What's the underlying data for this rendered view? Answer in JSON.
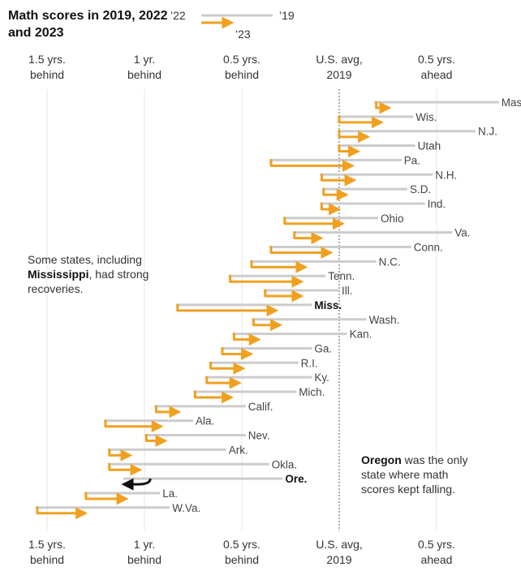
{
  "title": "Math scores in 2019, 2022 and 2023",
  "legend": {
    "y2022": "’22",
    "y2019": "’19",
    "y2023": "’23"
  },
  "colors": {
    "arrow": "#f0a020",
    "line2019": "#cccccc",
    "gridline": "#e6e6e6",
    "avgline": "#777777",
    "oregon_arrow": "#111111"
  },
  "notes": {
    "mississippi": {
      "pre": "Some states, including ",
      "bold": "Mississippi",
      "post": ", had strong recoveries."
    },
    "oregon": {
      "bold": "Oregon",
      "post": " was the only state where math scores kept falling."
    }
  },
  "chart_data": {
    "type": "arrow-dot",
    "x_unit": "years of learning relative to U.S. avg, 2019",
    "xlim": [
      -1.7,
      0.8
    ],
    "ticks": [
      {
        "value": -1.5,
        "line1": "1.5 yrs.",
        "line2": "behind"
      },
      {
        "value": -1.0,
        "line1": "1 yr.",
        "line2": "behind"
      },
      {
        "value": -0.5,
        "line1": "0.5 yrs.",
        "line2": "behind"
      },
      {
        "value": 0.0,
        "line1": "U.S. avg,",
        "line2": "2019"
      },
      {
        "value": 0.5,
        "line1": "0.5 yrs.",
        "line2": "ahead"
      }
    ],
    "states": [
      {
        "name": "Mass.",
        "v2019": 0.82,
        "v2022": 0.19,
        "v2023": 0.25
      },
      {
        "name": "Wis.",
        "v2019": 0.38,
        "v2022": 0.0,
        "v2023": 0.21
      },
      {
        "name": "N.J.",
        "v2019": 0.7,
        "v2022": 0.0,
        "v2023": 0.14
      },
      {
        "name": "Utah",
        "v2019": 0.39,
        "v2022": 0.0,
        "v2023": 0.09
      },
      {
        "name": "Pa.",
        "v2019": 0.32,
        "v2022": -0.35,
        "v2023": 0.06
      },
      {
        "name": "N.H.",
        "v2019": 0.48,
        "v2022": -0.09,
        "v2023": 0.07
      },
      {
        "name": "S.D.",
        "v2019": 0.35,
        "v2022": -0.08,
        "v2023": 0.03
      },
      {
        "name": "Ind.",
        "v2019": 0.44,
        "v2022": -0.09,
        "v2023": -0.01
      },
      {
        "name": "Ohio",
        "v2019": 0.2,
        "v2022": -0.28,
        "v2023": 0.01
      },
      {
        "name": "Va.",
        "v2019": 0.58,
        "v2022": -0.23,
        "v2023": -0.1
      },
      {
        "name": "Conn.",
        "v2019": 0.37,
        "v2022": -0.35,
        "v2023": -0.05
      },
      {
        "name": "N.C.",
        "v2019": 0.19,
        "v2022": -0.45,
        "v2023": -0.18
      },
      {
        "name": "Tenn.",
        "v2019": -0.07,
        "v2022": -0.56,
        "v2023": -0.2
      },
      {
        "name": "Ill.",
        "v2019": 0.0,
        "v2022": -0.38,
        "v2023": -0.2
      },
      {
        "name": "Miss.",
        "v2019": -0.14,
        "v2022": -0.83,
        "v2023": -0.33,
        "bold": true
      },
      {
        "name": "Wash.",
        "v2019": 0.14,
        "v2022": -0.44,
        "v2023": -0.31
      },
      {
        "name": "Kan.",
        "v2019": 0.04,
        "v2022": -0.54,
        "v2023": -0.42
      },
      {
        "name": "Ga.",
        "v2019": -0.14,
        "v2022": -0.6,
        "v2023": -0.46
      },
      {
        "name": "R.I.",
        "v2019": -0.21,
        "v2022": -0.66,
        "v2023": -0.5
      },
      {
        "name": "Ky.",
        "v2019": -0.14,
        "v2022": -0.68,
        "v2023": -0.52
      },
      {
        "name": "Mich.",
        "v2019": -0.22,
        "v2022": -0.74,
        "v2023": -0.56
      },
      {
        "name": "Calif.",
        "v2019": -0.48,
        "v2022": -0.94,
        "v2023": -0.83
      },
      {
        "name": "Ala.",
        "v2019": -0.75,
        "v2022": -1.2,
        "v2023": -0.92
      },
      {
        "name": "Nev.",
        "v2019": -0.48,
        "v2022": -0.99,
        "v2023": -0.9
      },
      {
        "name": "Ark.",
        "v2019": -0.58,
        "v2022": -1.18,
        "v2023": -1.08
      },
      {
        "name": "Okla.",
        "v2019": -0.36,
        "v2022": -1.18,
        "v2023": -1.03
      },
      {
        "name": "Ore.",
        "v2019": -0.29,
        "v2022": -0.97,
        "v2023": -1.1,
        "bold": true
      },
      {
        "name": "La.",
        "v2019": -0.92,
        "v2022": -1.3,
        "v2023": -1.1
      },
      {
        "name": "W.Va.",
        "v2019": -0.87,
        "v2022": -1.55,
        "v2023": -1.31
      }
    ]
  }
}
